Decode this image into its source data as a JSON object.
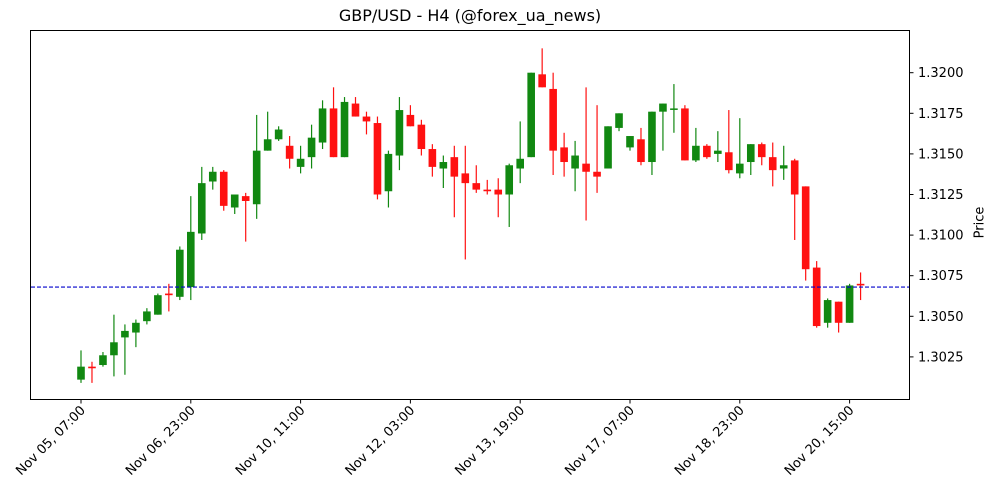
{
  "title": "GBP/USD - H4 (@forex_ua_news)",
  "colors": {
    "up": "#118811",
    "down": "#ff1111",
    "ref_line": "#0000cc",
    "axis": "#000000"
  },
  "chart_data": {
    "type": "candlestick",
    "title": "GBP/USD - H4 (@forex_ua_news)",
    "xlabel": "",
    "ylabel": "Price",
    "ylim": [
      1.3001,
      1.3227
    ],
    "y_ticks": [
      1.3025,
      1.305,
      1.3075,
      1.31,
      1.3125,
      1.315,
      1.3175,
      1.32
    ],
    "y_tick_labels": [
      "1.3025",
      "1.3050",
      "1.3075",
      "1.3100",
      "1.3125",
      "1.3150",
      "1.3175",
      "1.3200"
    ],
    "x_tick_labels": [
      "Nov 05, 07:00",
      "Nov 06, 23:00",
      "Nov 10, 11:00",
      "Nov 12, 03:00",
      "Nov 13, 19:00",
      "Nov 17, 07:00",
      "Nov 18, 23:00",
      "Nov 20, 15:00"
    ],
    "x_tick_indices": [
      0,
      10,
      20,
      30,
      40,
      50,
      60,
      70
    ],
    "reference_line": {
      "price": 1.3068,
      "style": "dashed",
      "color": "#0000cc"
    },
    "grid": false,
    "candles": [
      {
        "o": 1.3011,
        "h": 1.3029,
        "l": 1.3009,
        "c": 1.3019
      },
      {
        "o": 1.3019,
        "h": 1.3022,
        "l": 1.3009,
        "c": 1.3018
      },
      {
        "o": 1.302,
        "h": 1.3028,
        "l": 1.3019,
        "c": 1.3026
      },
      {
        "o": 1.3026,
        "h": 1.3051,
        "l": 1.3013,
        "c": 1.3034
      },
      {
        "o": 1.3037,
        "h": 1.3045,
        "l": 1.3014,
        "c": 1.3041
      },
      {
        "o": 1.304,
        "h": 1.3048,
        "l": 1.3031,
        "c": 1.3046
      },
      {
        "o": 1.3047,
        "h": 1.3055,
        "l": 1.3045,
        "c": 1.3053
      },
      {
        "o": 1.3051,
        "h": 1.3064,
        "l": 1.3051,
        "c": 1.3063
      },
      {
        "o": 1.3064,
        "h": 1.307,
        "l": 1.3053,
        "c": 1.3063
      },
      {
        "o": 1.3062,
        "h": 1.3093,
        "l": 1.306,
        "c": 1.3091
      },
      {
        "o": 1.3068,
        "h": 1.3124,
        "l": 1.306,
        "c": 1.3102
      },
      {
        "o": 1.3101,
        "h": 1.3142,
        "l": 1.3097,
        "c": 1.3132
      },
      {
        "o": 1.3133,
        "h": 1.3142,
        "l": 1.3128,
        "c": 1.3139
      },
      {
        "o": 1.3139,
        "h": 1.314,
        "l": 1.3115,
        "c": 1.3118
      },
      {
        "o": 1.3117,
        "h": 1.3125,
        "l": 1.3113,
        "c": 1.3125
      },
      {
        "o": 1.3124,
        "h": 1.3126,
        "l": 1.3096,
        "c": 1.3121
      },
      {
        "o": 1.3119,
        "h": 1.3174,
        "l": 1.311,
        "c": 1.3152
      },
      {
        "o": 1.3152,
        "h": 1.3176,
        "l": 1.3152,
        "c": 1.3159
      },
      {
        "o": 1.3159,
        "h": 1.3167,
        "l": 1.3158,
        "c": 1.3165
      },
      {
        "o": 1.3155,
        "h": 1.3161,
        "l": 1.3141,
        "c": 1.3147
      },
      {
        "o": 1.3142,
        "h": 1.3155,
        "l": 1.3138,
        "c": 1.3147
      },
      {
        "o": 1.3148,
        "h": 1.3168,
        "l": 1.3141,
        "c": 1.316
      },
      {
        "o": 1.3157,
        "h": 1.3183,
        "l": 1.3153,
        "c": 1.3178
      },
      {
        "o": 1.3178,
        "h": 1.3191,
        "l": 1.3148,
        "c": 1.3148
      },
      {
        "o": 1.3148,
        "h": 1.3185,
        "l": 1.3148,
        "c": 1.3182
      },
      {
        "o": 1.3181,
        "h": 1.3185,
        "l": 1.3173,
        "c": 1.3173
      },
      {
        "o": 1.3173,
        "h": 1.3176,
        "l": 1.3162,
        "c": 1.317
      },
      {
        "o": 1.3169,
        "h": 1.3173,
        "l": 1.3122,
        "c": 1.3125
      },
      {
        "o": 1.3127,
        "h": 1.3152,
        "l": 1.3117,
        "c": 1.315
      },
      {
        "o": 1.3149,
        "h": 1.3185,
        "l": 1.314,
        "c": 1.3177
      },
      {
        "o": 1.3174,
        "h": 1.318,
        "l": 1.3167,
        "c": 1.3167
      },
      {
        "o": 1.3168,
        "h": 1.3171,
        "l": 1.3149,
        "c": 1.3153
      },
      {
        "o": 1.3153,
        "h": 1.3156,
        "l": 1.3136,
        "c": 1.3142
      },
      {
        "o": 1.3141,
        "h": 1.3149,
        "l": 1.3129,
        "c": 1.3145
      },
      {
        "o": 1.3148,
        "h": 1.3155,
        "l": 1.3111,
        "c": 1.3136
      },
      {
        "o": 1.3138,
        "h": 1.3155,
        "l": 1.3085,
        "c": 1.3132
      },
      {
        "o": 1.3132,
        "h": 1.3143,
        "l": 1.3126,
        "c": 1.3128
      },
      {
        "o": 1.3128,
        "h": 1.3134,
        "l": 1.3125,
        "c": 1.3127
      },
      {
        "o": 1.3128,
        "h": 1.3135,
        "l": 1.3111,
        "c": 1.3125
      },
      {
        "o": 1.3125,
        "h": 1.3144,
        "l": 1.3105,
        "c": 1.3143
      },
      {
        "o": 1.3141,
        "h": 1.317,
        "l": 1.3132,
        "c": 1.3147
      },
      {
        "o": 1.3148,
        "h": 1.32,
        "l": 1.3148,
        "c": 1.32
      },
      {
        "o": 1.3199,
        "h": 1.3215,
        "l": 1.3191,
        "c": 1.3191
      },
      {
        "o": 1.319,
        "h": 1.32,
        "l": 1.3137,
        "c": 1.3152
      },
      {
        "o": 1.3154,
        "h": 1.3163,
        "l": 1.3136,
        "c": 1.3145
      },
      {
        "o": 1.3141,
        "h": 1.3158,
        "l": 1.3127,
        "c": 1.3149
      },
      {
        "o": 1.3144,
        "h": 1.3191,
        "l": 1.3109,
        "c": 1.3139
      },
      {
        "o": 1.3139,
        "h": 1.318,
        "l": 1.3126,
        "c": 1.3136
      },
      {
        "o": 1.3141,
        "h": 1.3167,
        "l": 1.3141,
        "c": 1.3167
      },
      {
        "o": 1.3166,
        "h": 1.3175,
        "l": 1.3164,
        "c": 1.3175
      },
      {
        "o": 1.3154,
        "h": 1.3161,
        "l": 1.3152,
        "c": 1.3161
      },
      {
        "o": 1.3159,
        "h": 1.3166,
        "l": 1.3143,
        "c": 1.3145
      },
      {
        "o": 1.3145,
        "h": 1.3176,
        "l": 1.3137,
        "c": 1.3176
      },
      {
        "o": 1.3176,
        "h": 1.3181,
        "l": 1.3152,
        "c": 1.3181
      },
      {
        "o": 1.3178,
        "h": 1.3193,
        "l": 1.3163,
        "c": 1.3178
      },
      {
        "o": 1.3178,
        "h": 1.318,
        "l": 1.3146,
        "c": 1.3146
      },
      {
        "o": 1.3146,
        "h": 1.3166,
        "l": 1.3145,
        "c": 1.3155
      },
      {
        "o": 1.3155,
        "h": 1.3156,
        "l": 1.3147,
        "c": 1.3148
      },
      {
        "o": 1.315,
        "h": 1.3164,
        "l": 1.3145,
        "c": 1.3152
      },
      {
        "o": 1.3151,
        "h": 1.3177,
        "l": 1.3138,
        "c": 1.314
      },
      {
        "o": 1.3138,
        "h": 1.3172,
        "l": 1.3135,
        "c": 1.3144
      },
      {
        "o": 1.3145,
        "h": 1.3156,
        "l": 1.3137,
        "c": 1.3156
      },
      {
        "o": 1.3156,
        "h": 1.3157,
        "l": 1.3143,
        "c": 1.3148
      },
      {
        "o": 1.3148,
        "h": 1.3157,
        "l": 1.313,
        "c": 1.314
      },
      {
        "o": 1.3141,
        "h": 1.3155,
        "l": 1.3134,
        "c": 1.3143
      },
      {
        "o": 1.3146,
        "h": 1.3147,
        "l": 1.3097,
        "c": 1.3125
      },
      {
        "o": 1.313,
        "h": 1.313,
        "l": 1.3072,
        "c": 1.3079
      },
      {
        "o": 1.308,
        "h": 1.3084,
        "l": 1.3043,
        "c": 1.3044
      },
      {
        "o": 1.3046,
        "h": 1.3061,
        "l": 1.3043,
        "c": 1.306
      },
      {
        "o": 1.3059,
        "h": 1.3059,
        "l": 1.304,
        "c": 1.3046
      },
      {
        "o": 1.3046,
        "h": 1.307,
        "l": 1.3046,
        "c": 1.3069
      },
      {
        "o": 1.307,
        "h": 1.3077,
        "l": 1.306,
        "c": 1.3069
      }
    ]
  }
}
